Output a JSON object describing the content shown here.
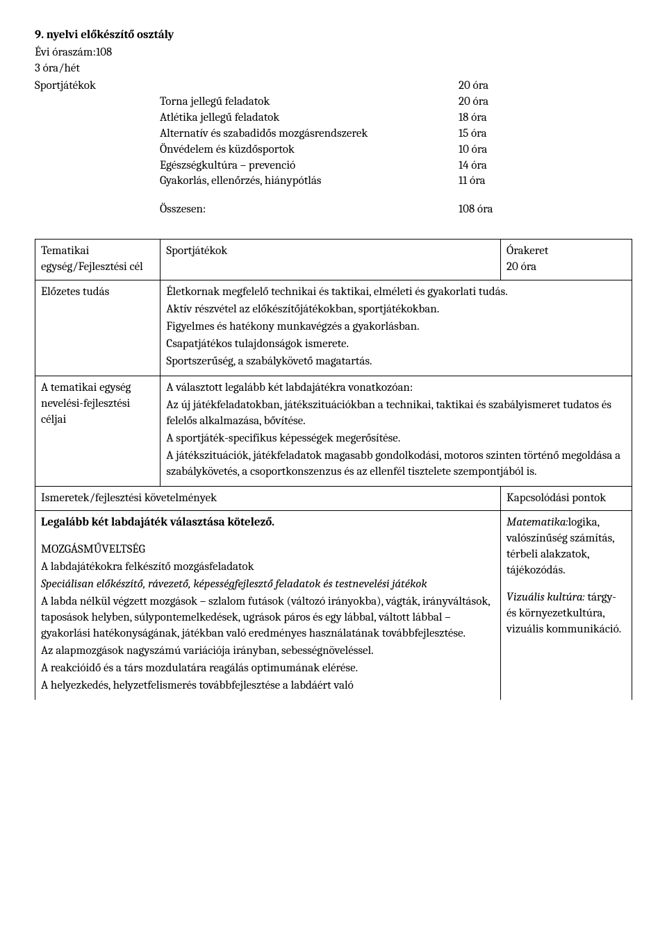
{
  "header": {
    "title": "9. nyelvi előkészítő osztály",
    "annual": "Évi óraszám:108",
    "weekly": "3 óra/hét",
    "first_label": "Sportjátékok",
    "first_value": "20 óra",
    "lines": [
      {
        "activity": "Torna jellegű feladatok",
        "value": "20 óra"
      },
      {
        "activity": "Atlétika jellegű feladatok",
        "value": "18 óra"
      },
      {
        "activity": "Alternatív és szabadidős mozgásrendszerek",
        "value": "15 óra"
      },
      {
        "activity": "Önvédelem és küzdősportok",
        "value": "10 óra"
      },
      {
        "activity": "Egészségkultúra – prevenció",
        "value": "14 óra"
      },
      {
        "activity": "Gyakorlás, ellenőrzés, hiánypótlás",
        "value": "11 óra"
      }
    ],
    "summary_label": "Összesen:",
    "summary_value": "108 óra"
  },
  "table": {
    "unit_label": "Tematikai egység/Fejlesztési cél",
    "unit_title": "Sportjátékok",
    "orakeret_label": "Órakeret",
    "orakeret_value": "20 óra",
    "elozetes_label": "Előzetes tudás",
    "elozetes_lines": [
      "Életkornak megfelelő technikai és taktikai, elméleti és gyakorlati tudás.",
      "Aktív részvétel az előkészítőjátékokban, sportjátékokban.",
      "Figyelmes és hatékony munkavégzés a gyakorlásban.",
      "Csapatjátékos tulajdonságok ismerete.",
      "Sportszerűség, a szabálykövető magatartás."
    ],
    "celok_label": "A tematikai egység nevelési-fejlesztési céljai",
    "celok_lines": [
      "A választott legalább két labdajátékra vonatkozóan:",
      "Az új játékfeladatokban, játékszituációkban a technikai, taktikai és szabályismeret tudatos és felelős alkalmazása, bővítése.",
      "A sportjáték-specifikus képességek megerősítése.",
      "A játékszituációk, játékfeladatok magasabb gondolkodási, motoros szinten történő megoldása a szabálykövetés, a csoportkonszenzus és az ellenfél tisztelete szempontjából is."
    ],
    "ismeretek_head": "Ismeretek/fejlesztési    követelmények",
    "kapcs_head": "Kapcsolódási pontok",
    "content": {
      "l1": "Legalább két labdajáték választása kötelező.",
      "l2": "MOZGÁSMŰVELTSÉG",
      "l3": "A labdajátékokra felkészítő mozgásfeladatok",
      "l4": "Speciálisan előkészítő, rávezető, képességfejlesztő feladatok és testnevelési játékok",
      "l5": "A labda nélkül végzett mozgások – szlalom futások (változó irányokba), vágták, irányváltások, taposások helyben, súlypontemelkedések, ugrások páros és egy lábbal, váltott lábbal – gyakorlási hatékonyságának, játékban való eredményes használatának továbbfejlesztése.",
      "l6": "Az alapmozgások nagyszámú variációja irányban, sebességnöveléssel.",
      "l7": "A reakcióidő és a társ mozdulatára reagálás optimumának elérése.",
      "l8": "A helyezkedés, helyzetfelismerés továbbfejlesztése a labdáért való"
    },
    "kapcs": {
      "k1a": "Matematika:",
      "k1b": "logika, valószínűség számítás, térbeli alakzatok, tájékozódás.",
      "k2a": "Vizuális kultúra:",
      "k2b": "tárgy- és környezetkultúra, vizuális kommunikáció."
    }
  }
}
